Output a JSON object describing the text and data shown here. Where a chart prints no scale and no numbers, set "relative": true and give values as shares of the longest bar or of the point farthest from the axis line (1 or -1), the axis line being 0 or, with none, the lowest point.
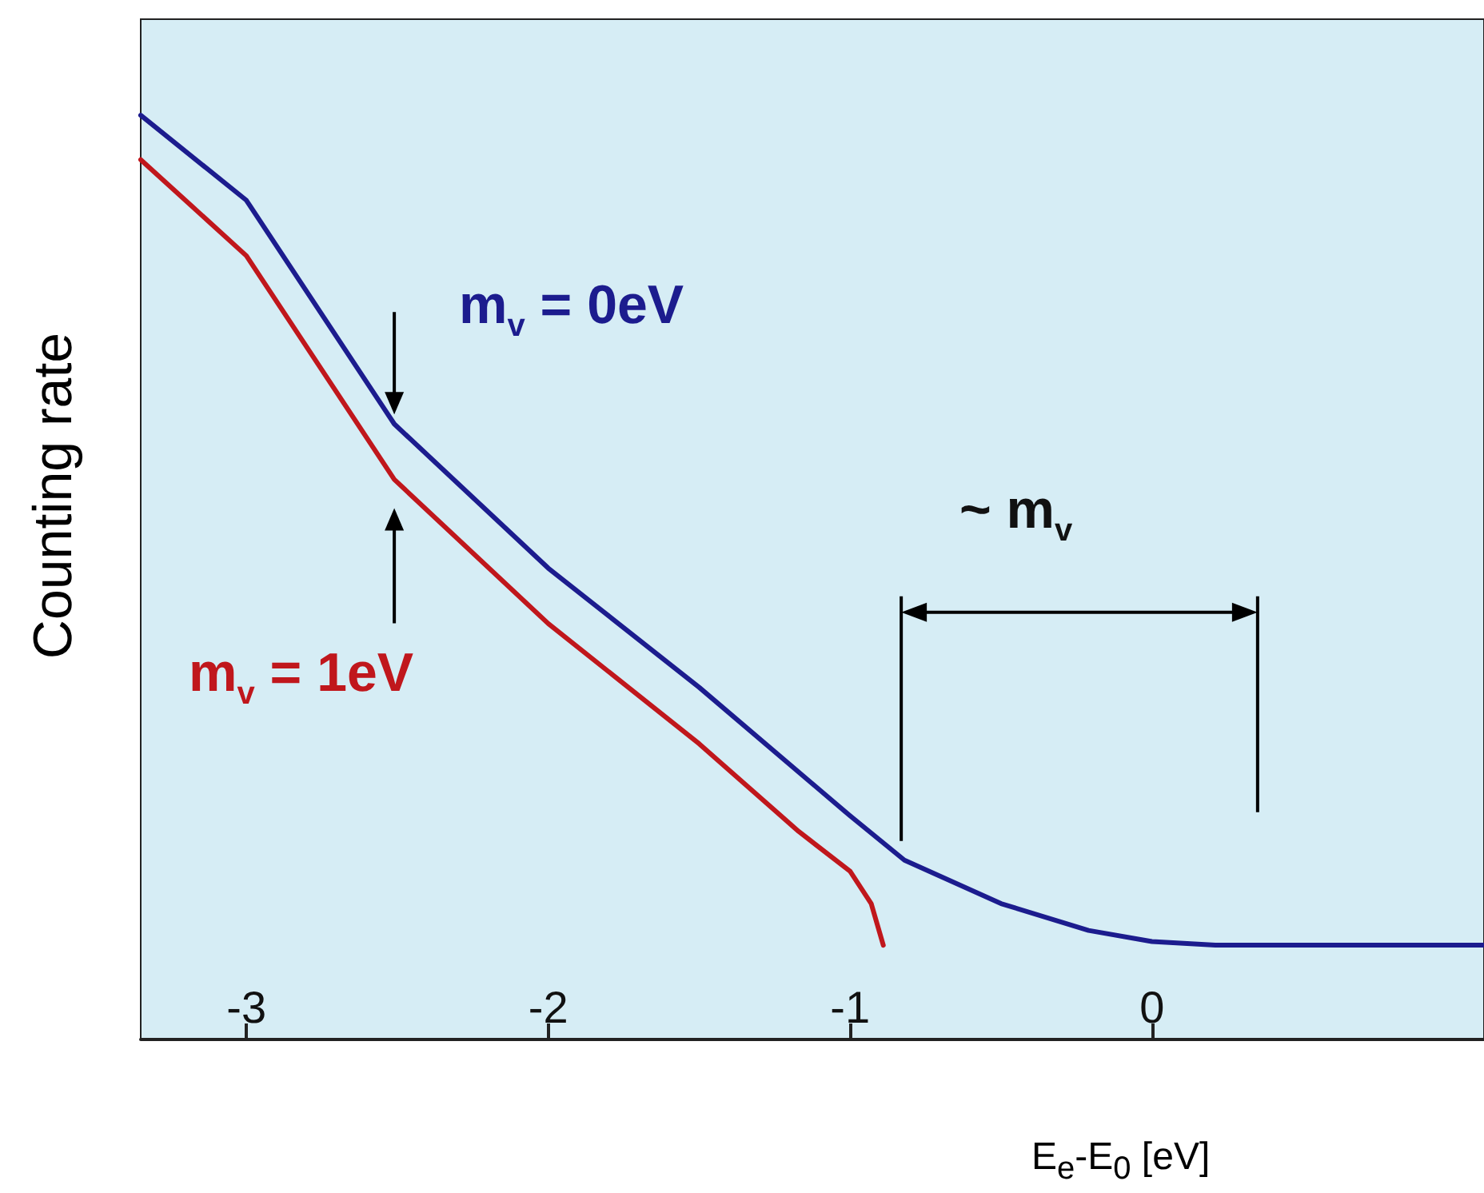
{
  "chart_data": {
    "type": "line",
    "relative": true,
    "xlabel": "E$_{e}$-E$_{0}$ [eV]",
    "ylabel": "Counting rate",
    "xlim": [
      -3.35,
      1.1
    ],
    "xticks": [
      -3,
      -2,
      -1,
      0
    ],
    "grid": false,
    "marker": "none",
    "line_style": "solid",
    "series": [
      {
        "color": "#1c1c8e",
        "x": [
          -3.35,
          -3.0,
          -2.51,
          -2.0,
          -1.5,
          -1.0,
          -0.82,
          -0.5,
          -0.21,
          0.0,
          0.21,
          1.1
        ],
        "values": [
          1.0,
          0.908,
          0.666,
          0.51,
          0.381,
          0.242,
          0.194,
          0.147,
          0.118,
          0.106,
          0.102,
          0.102
        ]
      },
      {
        "color": "#c0171c",
        "x": [
          -3.35,
          -3.0,
          -2.51,
          -2.0,
          -1.5,
          -1.17,
          -1.0,
          -0.93,
          -0.89
        ],
        "values": [
          0.952,
          0.848,
          0.606,
          0.45,
          0.32,
          0.225,
          0.182,
          0.147,
          0.102
        ]
      }
    ],
    "annotations": [
      "m$_{v}$ = 0eV",
      "m$_{v}$ = 1eV",
      "~ m$_{v}$"
    ]
  }
}
